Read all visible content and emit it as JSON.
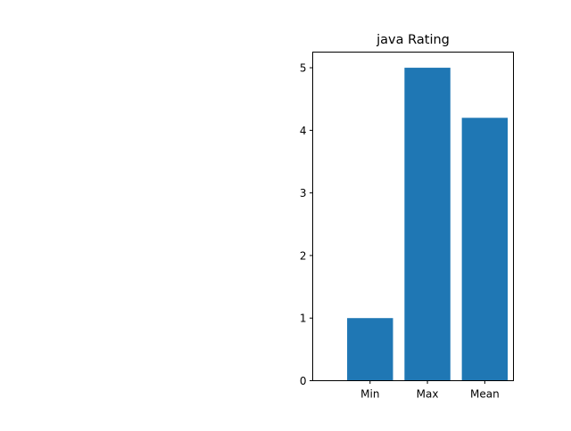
{
  "chart_data": {
    "type": "bar",
    "title": "java Rating",
    "xlabel": "",
    "ylabel": "",
    "categories": [
      "Min",
      "Max",
      "Mean"
    ],
    "values": [
      1,
      5,
      4.2
    ],
    "ylim": [
      0,
      5.25
    ],
    "yticks": [
      0,
      1,
      2,
      3,
      4,
      5
    ],
    "bar_color": "#1f77b4",
    "grid": false,
    "legend": "none"
  }
}
